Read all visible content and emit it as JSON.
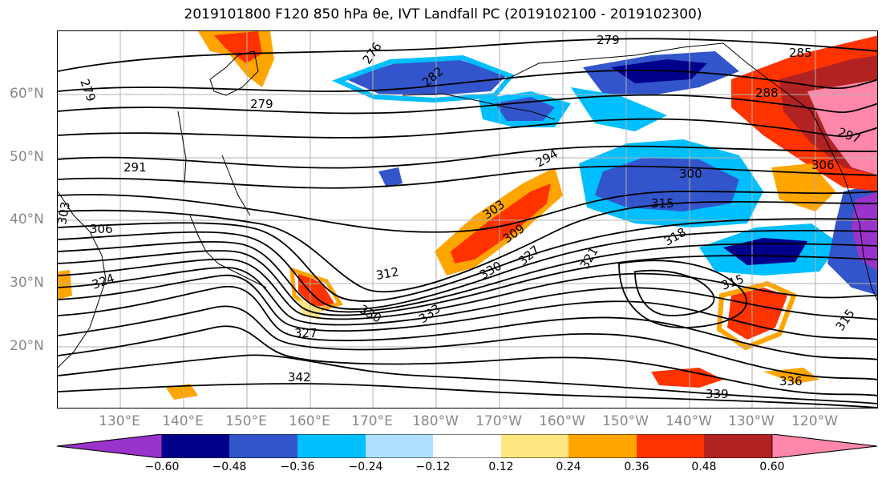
{
  "title": "2019101800 F120 850 hPa θe, IVT Landfall PC (2019102100 - 2019102300)",
  "lat_labels": [
    "60°N",
    "50°N",
    "40°N",
    "30°N",
    "20°N"
  ],
  "lon_labels": [
    "130°E",
    "140°E",
    "150°E",
    "160°E",
    "170°E",
    "180°W",
    "170°W",
    "160°W",
    "150°W",
    "140°W",
    "130°W",
    "120°W"
  ],
  "colorbar": {
    "ticks": [
      "−0.60",
      "−0.48",
      "−0.36",
      "−0.24",
      "−0.12",
      "0.12",
      "0.24",
      "0.36",
      "0.48",
      "0.60"
    ],
    "colors": [
      "#9933cc",
      "#00008b",
      "#3355cc",
      "#00bfff",
      "#b0e0ff",
      "#ffffff",
      "#ffe680",
      "#ffa500",
      "#ff3300",
      "#b22222",
      "#ff88aa"
    ]
  },
  "contour_labels": [
    "279",
    "279",
    "279",
    "276",
    "282",
    "285",
    "288",
    "291",
    "294",
    "297",
    "300",
    "303",
    "303",
    "306",
    "306",
    "309",
    "312",
    "315",
    "315",
    "318",
    "321",
    "324",
    "327",
    "327",
    "330",
    "330",
    "333",
    "336",
    "339",
    "342",
    "315"
  ]
}
